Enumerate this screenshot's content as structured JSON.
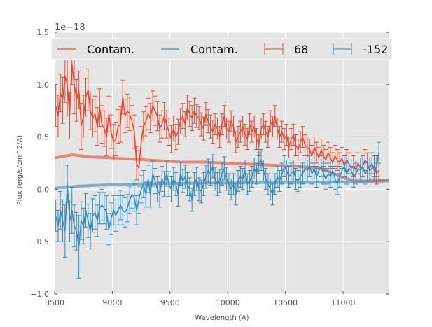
{
  "chart_data": {
    "type": "line",
    "style": "errorbar spectrum",
    "title": "",
    "xlabel": "Wavelength (A)",
    "ylabel": "Flux (erg/s/cm^2/A)",
    "y_offset_label": "1e−18",
    "xlim": [
      8500,
      11400
    ],
    "ylim": [
      -1.0,
      1.5
    ],
    "xticks": [
      8500,
      9000,
      9500,
      10000,
      10500,
      11000
    ],
    "xtick_labels": [
      "8500",
      "9000",
      "9500",
      "10000",
      "10500",
      "11000"
    ],
    "yticks": [
      -1.0,
      -0.5,
      0.0,
      0.5,
      1.0,
      1.5
    ],
    "ytick_labels": [
      "−1.0",
      "−0.5",
      "0.0",
      "0.5",
      "1.0",
      "1.5"
    ],
    "grid": true,
    "legend": {
      "placement": "top",
      "ncol": 4
    },
    "colors": {
      "red": "#e24a33",
      "blue": "#348abd",
      "background": "#e5e5e5",
      "grid": "#ffffff"
    },
    "contam_series": [
      {
        "name": "Contam.",
        "color": "#e24a33",
        "x": [
          8500,
          8600,
          8650,
          8800,
          9000,
          9300,
          9600,
          9800,
          10000,
          10200,
          10400,
          10600,
          10800,
          10900,
          11000,
          11100,
          11200,
          11400
        ],
        "y": [
          0.3,
          0.32,
          0.33,
          0.31,
          0.3,
          0.28,
          0.26,
          0.26,
          0.25,
          0.24,
          0.23,
          0.22,
          0.2,
          0.16,
          0.11,
          0.08,
          0.08,
          0.09
        ]
      },
      {
        "name": "Contam.",
        "color": "#348abd",
        "x": [
          8500,
          8700,
          8900,
          9200,
          9500,
          9800,
          10000,
          10300,
          10600,
          10900,
          11100,
          11400
        ],
        "y": [
          0.01,
          0.03,
          0.04,
          0.05,
          0.055,
          0.06,
          0.06,
          0.065,
          0.065,
          0.07,
          0.07,
          0.08
        ]
      }
    ],
    "errorbar_series": [
      {
        "name": "68",
        "color": "#e24a33",
        "x_start": 8510,
        "x_step": 20,
        "y": [
          0.8,
          0.7,
          0.92,
          0.85,
          1.08,
          1.0,
          0.7,
          1.2,
          1.0,
          0.85,
          0.95,
          0.6,
          0.7,
          0.88,
          0.95,
          0.75,
          0.68,
          0.72,
          0.6,
          0.78,
          0.62,
          0.58,
          0.5,
          0.72,
          0.55,
          0.45,
          0.48,
          0.6,
          0.62,
          0.88,
          0.7,
          0.75,
          0.72,
          0.65,
          0.55,
          0.25,
          0.2,
          0.45,
          0.6,
          0.65,
          0.72,
          0.68,
          0.8,
          0.75,
          0.7,
          0.58,
          0.62,
          0.7,
          0.62,
          0.55,
          0.48,
          0.58,
          0.5,
          0.55,
          0.65,
          0.7,
          0.62,
          0.78,
          0.72,
          0.68,
          0.75,
          0.7,
          0.68,
          0.62,
          0.58,
          0.72,
          0.65,
          0.6,
          0.55,
          0.62,
          0.58,
          0.5,
          0.62,
          0.7,
          0.58,
          0.55,
          0.65,
          0.6,
          0.45,
          0.5,
          0.55,
          0.6,
          0.52,
          0.48,
          0.62,
          0.55,
          0.6,
          0.48,
          0.42,
          0.58,
          0.62,
          0.55,
          0.5,
          0.65,
          0.6,
          0.7,
          0.58,
          0.5,
          0.55,
          0.48,
          0.52,
          0.4,
          0.48,
          0.52,
          0.42,
          0.38,
          0.45,
          0.5,
          0.42,
          0.4,
          0.38,
          0.32,
          0.4,
          0.35,
          0.3,
          0.38,
          0.32,
          0.28,
          0.35,
          0.3,
          0.25,
          0.32,
          0.28,
          0.25,
          0.3,
          0.22,
          0.28,
          0.25,
          0.2,
          0.22,
          0.18,
          0.25,
          0.2,
          0.22,
          0.28,
          0.25,
          0.18,
          0.2,
          0.22,
          0.15,
          0.18
        ],
        "err": [
          0.2,
          0.2,
          0.18,
          0.22,
          0.25,
          0.3,
          0.22,
          0.2,
          0.28,
          0.2,
          0.18,
          0.22,
          0.2,
          0.18,
          0.2,
          0.18,
          0.18,
          0.17,
          0.18,
          0.18,
          0.18,
          0.17,
          0.18,
          0.17,
          0.16,
          0.17,
          0.16,
          0.16,
          0.17,
          0.16,
          0.16,
          0.16,
          0.16,
          0.15,
          0.16,
          0.16,
          0.17,
          0.15,
          0.14,
          0.14,
          0.15,
          0.14,
          0.14,
          0.14,
          0.14,
          0.13,
          0.13,
          0.13,
          0.13,
          0.13,
          0.13,
          0.12,
          0.12,
          0.12,
          0.12,
          0.12,
          0.12,
          0.12,
          0.12,
          0.12,
          0.12,
          0.11,
          0.11,
          0.11,
          0.11,
          0.11,
          0.11,
          0.11,
          0.11,
          0.1,
          0.1,
          0.1,
          0.1,
          0.1,
          0.1,
          0.1,
          0.1,
          0.1,
          0.1,
          0.1,
          0.1,
          0.1,
          0.1,
          0.1,
          0.1,
          0.1,
          0.1,
          0.1,
          0.1,
          0.1,
          0.1,
          0.1,
          0.1,
          0.1,
          0.1,
          0.1,
          0.1,
          0.1,
          0.1,
          0.1,
          0.1,
          0.1,
          0.1,
          0.1,
          0.1,
          0.1,
          0.1,
          0.1,
          0.1,
          0.1,
          0.1,
          0.1,
          0.1,
          0.1,
          0.1,
          0.1,
          0.1,
          0.1,
          0.1,
          0.1,
          0.1,
          0.1,
          0.1,
          0.1,
          0.1,
          0.1,
          0.1,
          0.1,
          0.1,
          0.1,
          0.1,
          0.1,
          0.1,
          0.1,
          0.1,
          0.1,
          0.1,
          0.1,
          0.1,
          0.1,
          0.1,
          0.1,
          0.1,
          0.1,
          0.1
        ]
      },
      {
        "name": "-152",
        "color": "#348abd",
        "x_start": 8510,
        "x_step": 20,
        "y": [
          -0.25,
          -0.35,
          -0.2,
          -0.3,
          -0.4,
          0.05,
          -0.3,
          -0.2,
          -0.35,
          -0.4,
          -0.55,
          -0.3,
          -0.35,
          -0.2,
          -0.3,
          -0.4,
          -0.25,
          -0.22,
          -0.3,
          -0.18,
          -0.15,
          -0.18,
          -0.22,
          -0.38,
          -0.28,
          -0.2,
          -0.25,
          -0.2,
          -0.15,
          -0.2,
          -0.22,
          -0.18,
          -0.1,
          -0.05,
          -0.08,
          -0.2,
          -0.1,
          0.0,
          0.05,
          -0.05,
          0.1,
          -0.05,
          0.15,
          0.08,
          0.0,
          -0.05,
          0.1,
          0.05,
          0.15,
          0.05,
          0.0,
          0.1,
          0.05,
          -0.05,
          0.15,
          0.08,
          0.12,
          0.05,
          0.0,
          -0.1,
          0.05,
          0.1,
          0.0,
          -0.02,
          0.05,
          0.12,
          0.18,
          0.15,
          0.22,
          0.1,
          0.05,
          0.08,
          0.15,
          0.2,
          0.1,
          0.05,
          0.0,
          0.05,
          -0.05,
          0.08,
          0.12,
          0.1,
          0.18,
          0.05,
          0.08,
          0.12,
          0.2,
          0.15,
          0.25,
          0.28,
          0.18,
          0.1,
          0.05,
          0.0,
          -0.05,
          0.05,
          0.12,
          0.08,
          0.15,
          0.22,
          0.18,
          0.12,
          0.15,
          0.18,
          0.1,
          0.08,
          0.12,
          0.15,
          0.2,
          0.18,
          0.22,
          0.15,
          0.2,
          0.12,
          0.18,
          0.22,
          0.15,
          0.1,
          0.15,
          0.12,
          0.18,
          0.1,
          0.05,
          0.12,
          0.18,
          0.22,
          0.15,
          0.2,
          0.18,
          0.12,
          0.15,
          0.2,
          0.18,
          0.22,
          0.15,
          0.18,
          0.2,
          0.25,
          0.18,
          0.22,
          0.35
        ],
        "err": [
          0.15,
          0.15,
          0.18,
          0.2,
          0.25,
          0.18,
          0.2,
          0.22,
          0.2,
          0.18,
          0.3,
          0.18,
          0.17,
          0.16,
          0.16,
          0.17,
          0.16,
          0.16,
          0.15,
          0.15,
          0.15,
          0.15,
          0.16,
          0.15,
          0.15,
          0.14,
          0.15,
          0.14,
          0.14,
          0.14,
          0.14,
          0.13,
          0.13,
          0.13,
          0.13,
          0.14,
          0.13,
          0.13,
          0.13,
          0.12,
          0.13,
          0.12,
          0.12,
          0.12,
          0.12,
          0.12,
          0.12,
          0.12,
          0.12,
          0.12,
          0.12,
          0.11,
          0.11,
          0.11,
          0.11,
          0.11,
          0.11,
          0.11,
          0.11,
          0.11,
          0.11,
          0.11,
          0.11,
          0.11,
          0.11,
          0.11,
          0.11,
          0.11,
          0.11,
          0.11,
          0.11,
          0.11,
          0.11,
          0.11,
          0.11,
          0.1,
          0.1,
          0.1,
          0.1,
          0.1,
          0.1,
          0.1,
          0.1,
          0.1,
          0.1,
          0.1,
          0.1,
          0.1,
          0.1,
          0.1,
          0.1,
          0.1,
          0.1,
          0.1,
          0.1,
          0.1,
          0.1,
          0.1,
          0.1,
          0.1,
          0.1,
          0.1,
          0.1,
          0.1,
          0.1,
          0.1,
          0.1,
          0.1,
          0.1,
          0.1,
          0.1,
          0.1,
          0.1,
          0.1,
          0.1,
          0.1,
          0.1,
          0.1,
          0.1,
          0.1,
          0.1,
          0.1,
          0.1,
          0.1,
          0.1,
          0.1,
          0.1,
          0.1,
          0.1,
          0.1,
          0.1,
          0.1,
          0.1,
          0.1,
          0.1,
          0.1,
          0.1,
          0.1,
          0.1,
          0.1,
          0.1,
          0.1,
          0.1,
          0.1,
          0.1
        ]
      }
    ],
    "legend_entries": [
      {
        "label": "Contam.",
        "color": "#e24a33",
        "marker": "line"
      },
      {
        "label": "Contam.",
        "color": "#348abd",
        "marker": "line"
      },
      {
        "label": "68",
        "color": "#e24a33",
        "marker": "errorbar"
      },
      {
        "label": "-152",
        "color": "#348abd",
        "marker": "errorbar"
      }
    ]
  }
}
